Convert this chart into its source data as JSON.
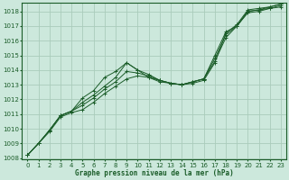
{
  "xlabel": "Graphe pression niveau de la mer (hPa)",
  "background_color": "#cce8dc",
  "grid_color": "#aaccbb",
  "line_color": "#1a5c28",
  "xlim": [
    -0.5,
    23.5
  ],
  "ylim": [
    1008,
    1018.5
  ],
  "ylim_display": [
    1008,
    1018
  ],
  "xticks": [
    0,
    1,
    2,
    3,
    4,
    5,
    6,
    7,
    8,
    9,
    10,
    11,
    12,
    13,
    14,
    15,
    16,
    17,
    18,
    19,
    20,
    21,
    22,
    23
  ],
  "yticks": [
    1008,
    1009,
    1010,
    1011,
    1012,
    1013,
    1014,
    1015,
    1016,
    1017,
    1018
  ],
  "series": [
    [
      1008.2,
      1009.0,
      1009.9,
      1010.9,
      1011.2,
      1011.8,
      1012.3,
      1012.9,
      1013.5,
      1014.5,
      1014.0,
      1013.7,
      1013.3,
      1013.1,
      1013.0,
      1013.2,
      1013.4,
      1015.0,
      1016.6,
      1017.0,
      1018.0,
      1018.1,
      1018.3,
      1018.5
    ],
    [
      1008.2,
      1009.0,
      1009.9,
      1010.9,
      1011.2,
      1011.6,
      1012.1,
      1012.7,
      1013.2,
      1013.9,
      1013.8,
      1013.6,
      1013.3,
      1013.1,
      1013.0,
      1013.2,
      1013.4,
      1014.8,
      1016.4,
      1017.0,
      1018.0,
      1018.1,
      1018.2,
      1018.4
    ],
    [
      1008.2,
      1009.0,
      1009.8,
      1010.8,
      1011.1,
      1011.3,
      1011.8,
      1012.4,
      1012.9,
      1013.4,
      1013.6,
      1013.5,
      1013.3,
      1013.1,
      1013.0,
      1013.2,
      1013.4,
      1014.6,
      1016.2,
      1017.0,
      1017.9,
      1018.0,
      1018.2,
      1018.3
    ]
  ],
  "series_bump": [
    1008.2,
    1009.0,
    1009.9,
    1010.9,
    1011.2,
    1012.1,
    1012.6,
    1013.5,
    1013.9,
    1014.5,
    1014.0,
    1013.5,
    1013.2,
    1013.1,
    1013.0,
    1013.1,
    1013.3,
    1014.5,
    1016.5,
    1017.1,
    1018.1,
    1018.2,
    1018.3,
    1018.5
  ]
}
